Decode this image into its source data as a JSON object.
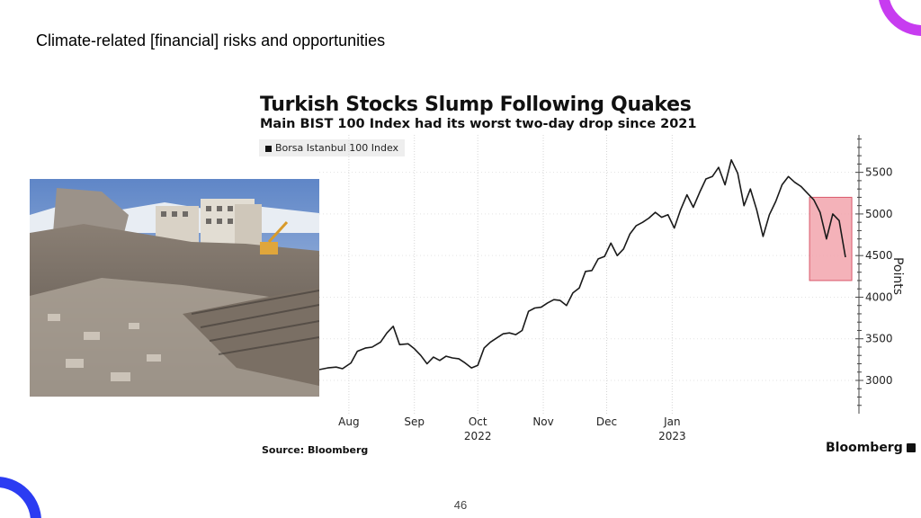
{
  "slide": {
    "title": "Climate-related [financial] risks and opportunities",
    "page_number": "46"
  },
  "colors": {
    "accent_purple": "#c73cf0",
    "accent_blue": "#2b3cf2",
    "line": "#1a1a1a",
    "highlight_fill": "#f2a5ad",
    "highlight_stroke": "#d9576a"
  },
  "photo": {
    "subject": "earthquake-rubble-photo"
  },
  "chart_data": {
    "type": "line",
    "title": "Turkish Stocks Slump Following Quakes",
    "subtitle": "Main BIST 100 Index had its worst two-day drop since 2021",
    "legend": [
      "Borsa Istanbul 100 Index"
    ],
    "ylabel": "Points",
    "source": "Source: Bloomberg",
    "brand": "Bloomberg",
    "ylim": [
      2600,
      5950
    ],
    "y_ticks": [
      3000,
      3500,
      4000,
      4500,
      5000,
      5500
    ],
    "y_tick_labels": [
      "3000",
      "3500",
      "4000",
      "4500",
      "5000",
      "5500"
    ],
    "x_ticks": [
      {
        "month": "2022-08",
        "label": "Aug",
        "year": ""
      },
      {
        "month": "2022-09",
        "label": "Sep",
        "year": ""
      },
      {
        "month": "2022-10",
        "label": "Oct",
        "year": "2022"
      },
      {
        "month": "2022-11",
        "label": "Nov",
        "year": ""
      },
      {
        "month": "2022-12",
        "label": "Dec",
        "year": ""
      },
      {
        "month": "2023-01",
        "label": "Jan",
        "year": "2023"
      }
    ],
    "series": [
      {
        "name": "Borsa Istanbul 100 Index",
        "points": [
          [
            "2022-07-18",
            3130
          ],
          [
            "2022-07-22",
            3150
          ],
          [
            "2022-07-26",
            3160
          ],
          [
            "2022-07-29",
            3140
          ],
          [
            "2022-08-02",
            3210
          ],
          [
            "2022-08-05",
            3350
          ],
          [
            "2022-08-09",
            3390
          ],
          [
            "2022-08-12",
            3400
          ],
          [
            "2022-08-16",
            3460
          ],
          [
            "2022-08-19",
            3570
          ],
          [
            "2022-08-22",
            3650
          ],
          [
            "2022-08-25",
            3430
          ],
          [
            "2022-08-29",
            3440
          ],
          [
            "2022-09-01",
            3380
          ],
          [
            "2022-09-04",
            3300
          ],
          [
            "2022-09-07",
            3200
          ],
          [
            "2022-09-10",
            3280
          ],
          [
            "2022-09-13",
            3240
          ],
          [
            "2022-09-16",
            3290
          ],
          [
            "2022-09-19",
            3270
          ],
          [
            "2022-09-22",
            3260
          ],
          [
            "2022-09-25",
            3210
          ],
          [
            "2022-09-28",
            3150
          ],
          [
            "2022-10-01",
            3180
          ],
          [
            "2022-10-04",
            3390
          ],
          [
            "2022-10-07",
            3460
          ],
          [
            "2022-10-10",
            3510
          ],
          [
            "2022-10-13",
            3560
          ],
          [
            "2022-10-16",
            3570
          ],
          [
            "2022-10-19",
            3550
          ],
          [
            "2022-10-22",
            3600
          ],
          [
            "2022-10-25",
            3830
          ],
          [
            "2022-10-28",
            3870
          ],
          [
            "2022-10-31",
            3880
          ],
          [
            "2022-11-03",
            3930
          ],
          [
            "2022-11-06",
            3970
          ],
          [
            "2022-11-09",
            3960
          ],
          [
            "2022-11-12",
            3900
          ],
          [
            "2022-11-15",
            4050
          ],
          [
            "2022-11-18",
            4110
          ],
          [
            "2022-11-21",
            4310
          ],
          [
            "2022-11-24",
            4320
          ],
          [
            "2022-11-27",
            4460
          ],
          [
            "2022-11-30",
            4490
          ],
          [
            "2022-12-03",
            4650
          ],
          [
            "2022-12-06",
            4500
          ],
          [
            "2022-12-09",
            4580
          ],
          [
            "2022-12-12",
            4760
          ],
          [
            "2022-12-15",
            4860
          ],
          [
            "2022-12-18",
            4900
          ],
          [
            "2022-12-21",
            4950
          ],
          [
            "2022-12-24",
            5020
          ],
          [
            "2022-12-27",
            4960
          ],
          [
            "2022-12-30",
            4990
          ],
          [
            "2023-01-02",
            4830
          ],
          [
            "2023-01-05",
            5050
          ],
          [
            "2023-01-08",
            5230
          ],
          [
            "2023-01-11",
            5080
          ],
          [
            "2023-01-14",
            5260
          ],
          [
            "2023-01-17",
            5420
          ],
          [
            "2023-01-20",
            5450
          ],
          [
            "2023-01-23",
            5560
          ],
          [
            "2023-01-26",
            5350
          ],
          [
            "2023-01-29",
            5650
          ],
          [
            "2023-02-01",
            5490
          ],
          [
            "2023-02-04",
            5100
          ],
          [
            "2023-02-07",
            5300
          ],
          [
            "2023-02-10",
            5050
          ],
          [
            "2023-02-13",
            4730
          ],
          [
            "2023-02-16",
            4990
          ],
          [
            "2023-02-19",
            5150
          ],
          [
            "2023-02-22",
            5350
          ],
          [
            "2023-02-25",
            5450
          ],
          [
            "2023-02-28",
            5380
          ],
          [
            "2023-03-03",
            5330
          ],
          [
            "2023-03-06",
            5250
          ],
          [
            "2023-03-09",
            5170
          ],
          [
            "2023-03-12",
            5020
          ],
          [
            "2023-03-15",
            4700
          ],
          [
            "2023-03-18",
            5000
          ],
          [
            "2023-03-21",
            4920
          ],
          [
            "2023-03-24",
            4480
          ]
        ]
      }
    ],
    "highlight": {
      "x_start": "2023-03-07",
      "x_end": "2023-03-27",
      "y_low": 4200,
      "y_high": 5200
    },
    "grid": "vertical-dotted",
    "legend_position": "top-left"
  }
}
